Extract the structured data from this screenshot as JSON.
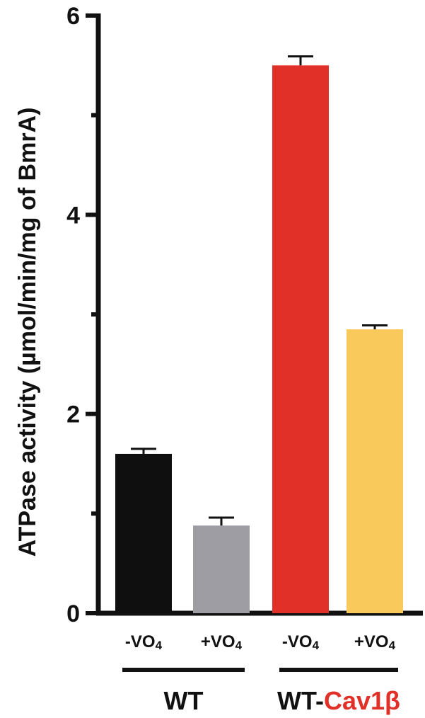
{
  "chart_data": {
    "type": "bar",
    "title": "",
    "ylabel": "ATPase activity (µmol/min/mg of BmrA)",
    "xlabel": "",
    "ylim": [
      0,
      6
    ],
    "yticks": [
      0,
      2,
      4,
      6
    ],
    "grid": false,
    "bars": [
      {
        "label": "-VO",
        "subscript": "4",
        "group": "WT",
        "value": 1.6,
        "error": 0.05,
        "color": "#0f0f0f"
      },
      {
        "label": "+VO",
        "subscript": "4",
        "group": "WT",
        "value": 0.88,
        "error": 0.08,
        "color": "#9d9da3"
      },
      {
        "label": "-VO",
        "subscript": "4",
        "group": "WT-Cav1β",
        "value": 5.5,
        "error": 0.09,
        "color": "#e03027"
      },
      {
        "label": "+VO",
        "subscript": "4",
        "group": "WT-Cav1β",
        "value": 2.85,
        "error": 0.04,
        "color": "#f9c95c"
      }
    ],
    "groups": [
      {
        "prefix": "WT",
        "suffix": "",
        "suffix_color": "#e03027"
      },
      {
        "prefix": "WT-",
        "suffix": "Cav1β",
        "suffix_color": "#e03027"
      }
    ]
  }
}
